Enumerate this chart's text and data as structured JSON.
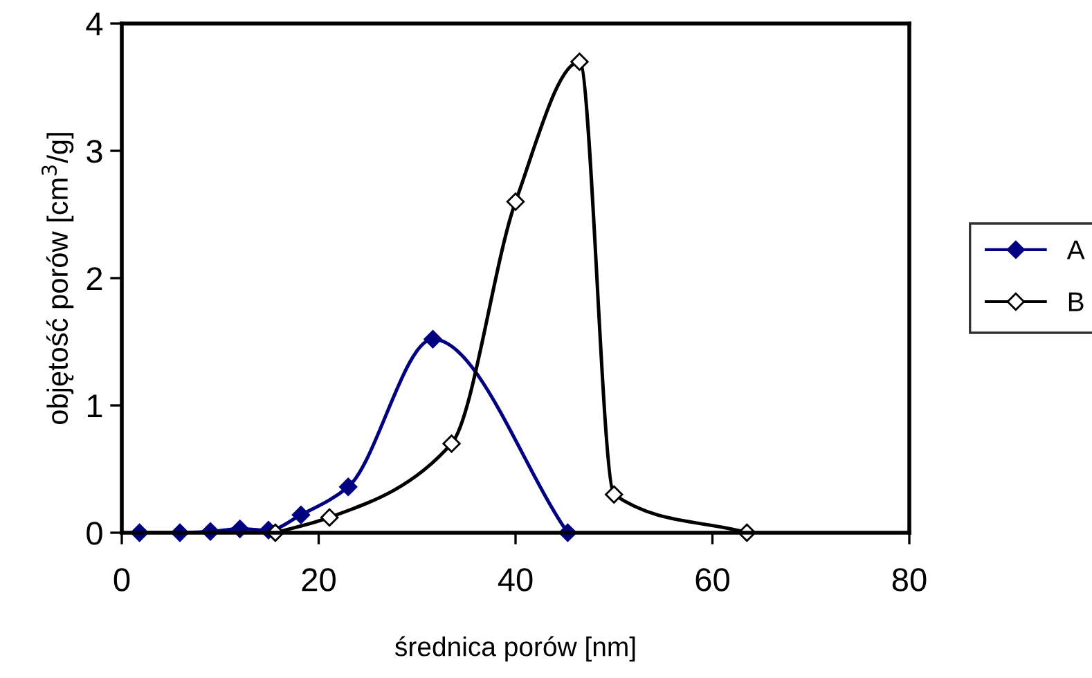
{
  "chart_data": {
    "type": "line",
    "xlabel": "średnica porów [nm]",
    "ylabel": "objętość porów [cm$^{3}$/g]",
    "xlim": [
      0,
      80
    ],
    "xticks": [
      0,
      20,
      40,
      60,
      80
    ],
    "ylim": [
      0,
      4
    ],
    "yticks": [
      0,
      1,
      2,
      3,
      4
    ],
    "grid": false,
    "legend": "right",
    "marker": "diamond",
    "line_style": "solid",
    "series": [
      {
        "name": "A",
        "color": "#000080",
        "x": [
          1.8,
          5.9,
          9.0,
          12.0,
          14.9,
          18.2,
          23.0,
          31.6,
          45.3
        ],
        "values": [
          0,
          0,
          0.01,
          0.03,
          0.02,
          0.14,
          0.36,
          1.52,
          0
        ]
      },
      {
        "name": "B",
        "color": "#000000",
        "x": [
          15.6,
          21.1,
          33.5,
          40.0,
          46.5,
          50.0,
          63.5
        ],
        "values": [
          0,
          0.12,
          0.7,
          2.6,
          3.7,
          0.3,
          0
        ]
      }
    ]
  }
}
